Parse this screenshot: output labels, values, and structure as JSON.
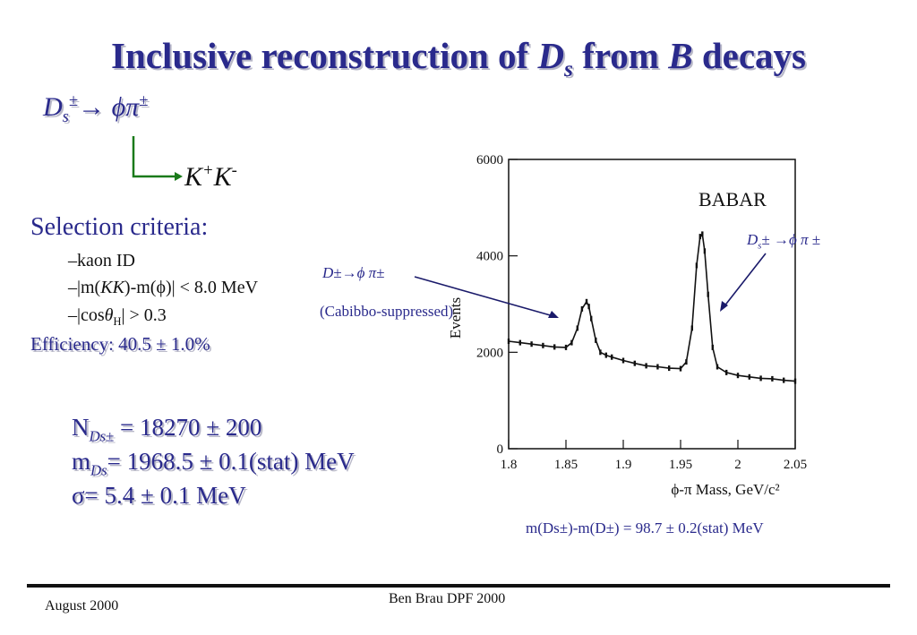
{
  "title": {
    "part1": "Inclusive reconstruction of ",
    "D": "D",
    "s": "s",
    "part2": " from ",
    "B": "B",
    "part3": " decays"
  },
  "decay": {
    "D": "D",
    "s": "s",
    "pm1": "±",
    "arrow": "→ ",
    "phi": "ϕπ",
    "pm2": "±"
  },
  "daughters": {
    "K1": "K",
    "plus": "+",
    "K2": "K",
    "minus": "-"
  },
  "selection": {
    "heading": "Selection criteria:",
    "kaon": "–kaon ID",
    "mass_pre": "–|m(",
    "mass_KK": "KK",
    "mass_post": ")-m(ϕ)| < 8.0  MeV",
    "cos_pre": "–|cos",
    "cos_theta": "θ",
    "cos_H": "H",
    "cos_post": "| > 0.3"
  },
  "efficiency": "Efficiency: 40.5 ± 1.0%",
  "results": {
    "n_pre": "N",
    "n_sub": "Ds±",
    "n_post": " = 18270 ± 200",
    "m_pre": "m",
    "m_sub": "Ds",
    "m_post": "= 1968.5 ± 0.1(stat) MeV",
    "sigma": "σ= 5.4 ± 0.1 MeV"
  },
  "annotations": {
    "dplus": "D±→ϕ π±",
    "cabibbo": "(Cabibbo-suppressed)",
    "ds_D": "D",
    "ds_s": "s",
    "ds_rest": "± →ϕ  π  ±",
    "mass_diff": "m(Ds±)-m(D±) = 98.7 ± 0.2(stat) MeV"
  },
  "footer": {
    "date": "August  2000",
    "author": "Ben Brau  DPF 2000"
  },
  "chart_data": {
    "type": "line",
    "brand": "BABAR",
    "xlabel": "ϕ-π Mass, GeV/c²",
    "ylabel": "Events",
    "xlim": [
      1.8,
      2.05
    ],
    "ylim": [
      0,
      6000
    ],
    "x_ticks": [
      "1.8",
      "1.85",
      "1.9",
      "1.95",
      "2",
      "2.05"
    ],
    "y_ticks": [
      "0",
      "2000",
      "4000",
      "6000"
    ],
    "x": [
      1.8,
      1.81,
      1.82,
      1.83,
      1.84,
      1.85,
      1.855,
      1.86,
      1.864,
      1.868,
      1.87,
      1.872,
      1.876,
      1.88,
      1.885,
      1.89,
      1.9,
      1.91,
      1.92,
      1.93,
      1.94,
      1.95,
      1.955,
      1.96,
      1.964,
      1.967,
      1.969,
      1.971,
      1.974,
      1.978,
      1.982,
      1.99,
      2.0,
      2.01,
      2.02,
      2.03,
      2.04,
      2.05
    ],
    "values": [
      2230,
      2200,
      2170,
      2140,
      2110,
      2100,
      2200,
      2500,
      2900,
      3050,
      2950,
      2700,
      2250,
      2000,
      1940,
      1900,
      1830,
      1770,
      1720,
      1700,
      1670,
      1660,
      1800,
      2500,
      3800,
      4400,
      4450,
      4100,
      3200,
      2100,
      1700,
      1580,
      1520,
      1490,
      1460,
      1450,
      1420,
      1400
    ]
  }
}
